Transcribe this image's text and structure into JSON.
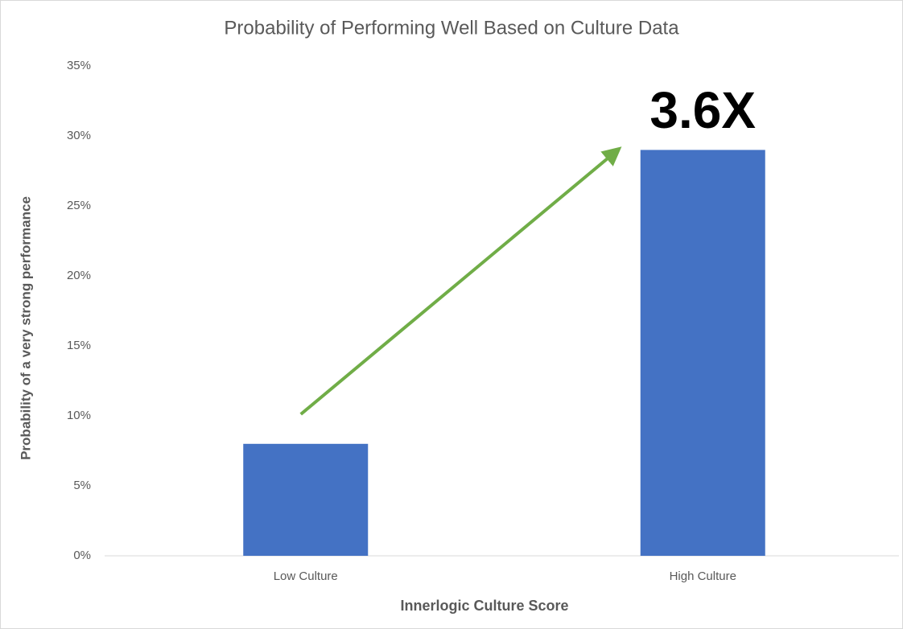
{
  "chart_data": {
    "type": "bar",
    "title": "Probability of Performing Well Based on Culture Data",
    "x_label": "Innerlogic Culture Score",
    "y_label": "Probability of a very strong performance",
    "categories": [
      "Low Culture",
      "High Culture"
    ],
    "values": [
      8,
      29
    ],
    "color": "#4472c4",
    "ylim": [
      0,
      35
    ],
    "yticks": [
      {
        "value": 0,
        "label": "0%"
      },
      {
        "value": 5,
        "label": "5%"
      },
      {
        "value": 10,
        "label": "10%"
      },
      {
        "value": 15,
        "label": "15%"
      },
      {
        "value": 20,
        "label": "20%"
      },
      {
        "value": 25,
        "label": "25%"
      },
      {
        "value": 30,
        "label": "30%"
      },
      {
        "value": 35,
        "label": "35%"
      }
    ],
    "grid": false,
    "annotation": "3.6X",
    "arrow_color": "#70ad47"
  }
}
